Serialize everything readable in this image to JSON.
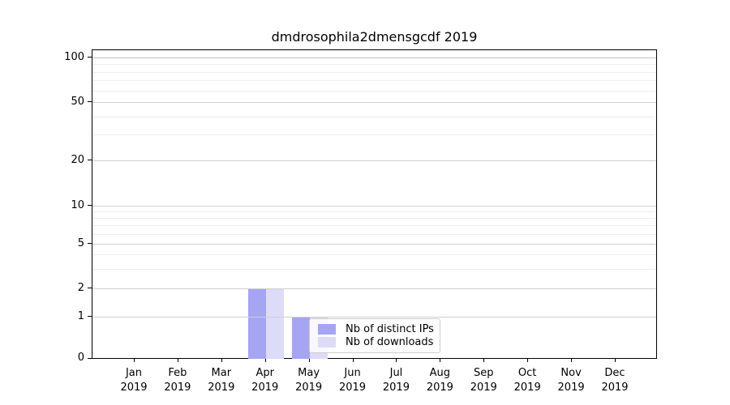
{
  "chart_data": {
    "type": "bar",
    "title": "dmdrosophila2dmensgcdf 2019",
    "categories": [
      "Jan",
      "Feb",
      "Mar",
      "Apr",
      "May",
      "Jun",
      "Jul",
      "Aug",
      "Sep",
      "Oct",
      "Nov",
      "Dec"
    ],
    "x_year_label": "2019",
    "series": [
      {
        "name": "Nb of distinct IPs",
        "color": "#a5a5f3",
        "values": [
          0,
          0,
          0,
          2,
          1,
          0,
          0,
          0,
          0,
          0,
          0,
          0
        ]
      },
      {
        "name": "Nb of downloads",
        "color": "#dcdcf9",
        "values": [
          0,
          0,
          0,
          2,
          1,
          0,
          0,
          0,
          0,
          0,
          0,
          0
        ]
      }
    ],
    "y_ticks": [
      0,
      1,
      2,
      5,
      10,
      20,
      50,
      100
    ],
    "ylim": [
      0,
      110
    ],
    "yscale": "symlog",
    "grid": "horizontal major and minor gridlines",
    "legend": {
      "entries": [
        "Nb of distinct IPs",
        "Nb of downloads"
      ],
      "position": "inside lower-center"
    }
  }
}
